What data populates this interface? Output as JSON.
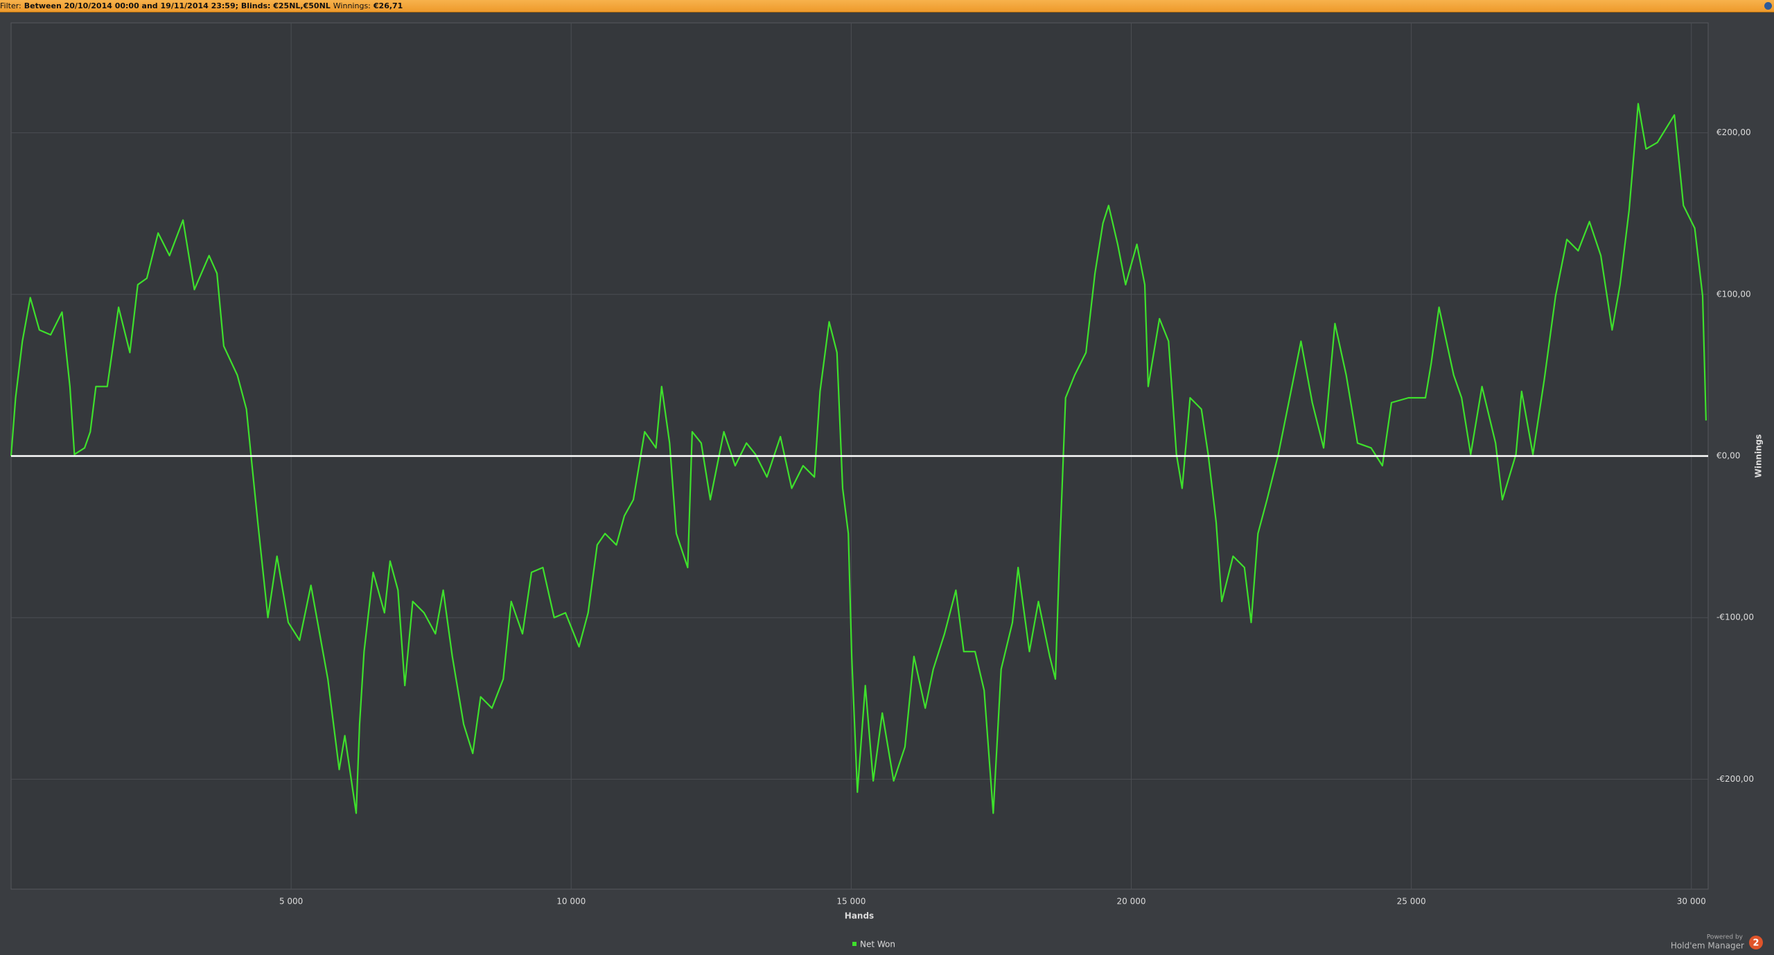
{
  "header": {
    "filter_label": "Filter:",
    "filter": "Between 20/10/2014 00:00 and 19/11/2014 23:59; Blinds: €25NL,€50NL",
    "winnings_label": "Winnings:",
    "winnings": "€26,71"
  },
  "footer": {
    "powered_by": "Powered by",
    "brand": "Hold'em Manager",
    "logo": "2"
  },
  "chart_data": {
    "type": "line",
    "xlabel": "Hands",
    "ylabel": "Winnings",
    "grid": true,
    "xlim": [
      0,
      30300
    ],
    "ylim": [
      -268,
      268
    ],
    "xticks": [
      {
        "value": 5000,
        "label": "5 000"
      },
      {
        "value": 10000,
        "label": "10 000"
      },
      {
        "value": 15000,
        "label": "15 000"
      },
      {
        "value": 20000,
        "label": "20 000"
      },
      {
        "value": 25000,
        "label": "25 000"
      },
      {
        "value": 30000,
        "label": "30 000"
      }
    ],
    "yticks": [
      {
        "value": -200,
        "label": "-€200,00"
      },
      {
        "value": -100,
        "label": "-€100,00"
      },
      {
        "value": 0,
        "label": "€0,00"
      },
      {
        "value": 100,
        "label": "€100,00"
      },
      {
        "value": 200,
        "label": "€200,00"
      }
    ],
    "x": [
      0,
      81,
      202,
      343,
      505,
      707,
      909,
      1050,
      1131,
      1313,
      1414,
      1515,
      1717,
      1919,
      2121,
      2262,
      2424,
      2626,
      2828,
      3070,
      3272,
      3535,
      3676,
      3797,
      4040,
      4202,
      4282,
      4404,
      4585,
      4747,
      4949,
      5151,
      5353,
      5656,
      5858,
      5959,
      6161,
      6222,
      6302,
      6464,
      6666,
      6767,
      6908,
      7030,
      7171,
      7373,
      7575,
      7716,
      7878,
      8080,
      8242,
      8383,
      8585,
      8787,
      8929,
      9131,
      9292,
      9494,
      9696,
      9898,
      10140,
      10302,
      10464,
      10605,
      10807,
      10949,
      11110,
      11312,
      11514,
      11615,
      11757,
      11878,
      12080,
      12161,
      12322,
      12484,
      12726,
      12928,
      13130,
      13292,
      13494,
      13736,
      13938,
      14140,
      14342,
      14443,
      14605,
      14746,
      14847,
      14948,
      15009,
      15110,
      15252,
      15393,
      15555,
      15757,
      15959,
      16120,
      16322,
      16464,
      16666,
      16868,
      17009,
      17211,
      17373,
      17535,
      17676,
      17878,
      17979,
      18181,
      18342,
      18544,
      18645,
      18726,
      18827,
      18989,
      19191,
      19352,
      19494,
      19595,
      19757,
      19898,
      20100,
      20241,
      20302,
      20504,
      20665,
      20807,
      20908,
      21050,
      21252,
      21373,
      21515,
      21616,
      21818,
      22020,
      22140,
      22262,
      22424,
      22626,
      22828,
      23030,
      23232,
      23434,
      23636,
      23838,
      24040,
      24282,
      24484,
      24646,
      24949,
      25252,
      25353,
      25494,
      25757,
      25898,
      26060,
      26262,
      26504,
      26625,
      26868,
      26969,
      27171,
      27373,
      27575,
      27777,
      27979,
      28181,
      28383,
      28585,
      28726,
      28888,
      29050,
      29191,
      29393,
      29696,
      29858,
      30060,
      30201,
      30262
    ],
    "series": [
      {
        "name": "Net Won",
        "color": "#3ee02c",
        "values": [
          0,
          36,
          71,
          98,
          78,
          75,
          89,
          43,
          1,
          5,
          15,
          43,
          43,
          92,
          64,
          106,
          110,
          138,
          124,
          146,
          103,
          124,
          113,
          68,
          50,
          29,
          1,
          -41,
          -100,
          -62,
          -103,
          -114,
          -80,
          -138,
          -194,
          -173,
          -221,
          -166,
          -121,
          -72,
          -97,
          -65,
          -83,
          -142,
          -90,
          -97,
          -110,
          -83,
          -124,
          -166,
          -184,
          -149,
          -156,
          -138,
          -90,
          -110,
          -72,
          -69,
          -100,
          -97,
          -118,
          -97,
          -55,
          -48,
          -55,
          -37,
          -27,
          15,
          5,
          43,
          8,
          -48,
          -69,
          15,
          8,
          -27,
          15,
          -6,
          8,
          1,
          -13,
          12,
          -20,
          -6,
          -13,
          40,
          83,
          64,
          -20,
          -48,
          -124,
          -208,
          -142,
          -201,
          -159,
          -201,
          -180,
          -124,
          -156,
          -132,
          -110,
          -83,
          -121,
          -121,
          -145,
          -221,
          -132,
          -103,
          -69,
          -121,
          -90,
          -124,
          -138,
          -55,
          36,
          50,
          64,
          113,
          144,
          155,
          131,
          106,
          131,
          106,
          43,
          85,
          71,
          1,
          -20,
          36,
          29,
          1,
          -41,
          -90,
          -62,
          -69,
          -103,
          -48,
          -27,
          1,
          36,
          71,
          33,
          5,
          82,
          50,
          8,
          5,
          -6,
          33,
          36,
          36,
          57,
          92,
          50,
          36,
          1,
          43,
          8,
          -27,
          1,
          40,
          1,
          47,
          99,
          134,
          127,
          145,
          124,
          78,
          106,
          152,
          218,
          190,
          194,
          211,
          155,
          141,
          99,
          22
        ]
      }
    ]
  }
}
